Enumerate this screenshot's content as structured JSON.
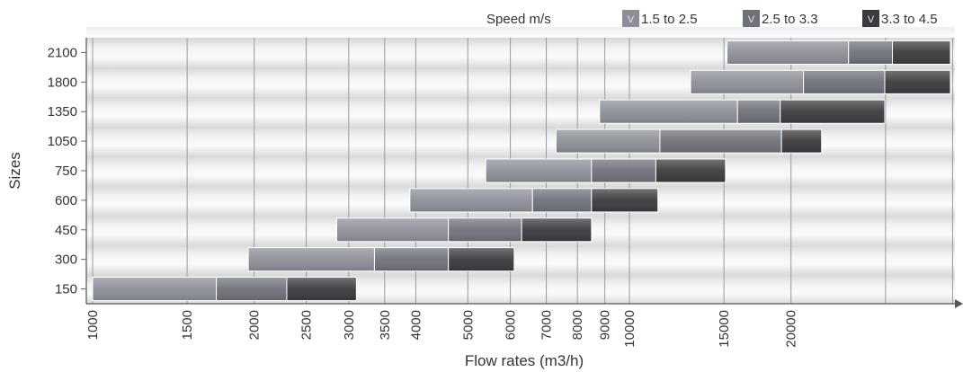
{
  "chart_data": {
    "type": "bar",
    "orientation": "horizontal",
    "xlabel": "Flow rates (m3/h)",
    "ylabel": "Sizes",
    "x_scale": "log",
    "x_ticks": [
      1000,
      1500,
      2000,
      2500,
      3000,
      3500,
      4000,
      5000,
      6000,
      7000,
      8000,
      9000,
      10000,
      15000,
      20000
    ],
    "categories": [
      "150",
      "300",
      "450",
      "600",
      "750",
      "1050",
      "1350",
      "1800",
      "2100"
    ],
    "legend": {
      "title": "Speed m/s",
      "position": "top-right",
      "swatch_glyph": "V",
      "entries": [
        {
          "label": "1.5 to 2.5",
          "color": "#8d8f98"
        },
        {
          "label": "2.5 to 3.3",
          "color": "#6f717a"
        },
        {
          "label": "3.3 to 4.5",
          "color": "#3b3b3f"
        }
      ]
    },
    "series": [
      {
        "name": "1.5 to 2.5",
        "ranges": [
          [
            1000,
            1700
          ],
          [
            1950,
            3350
          ],
          [
            2850,
            4600
          ],
          [
            3900,
            6600
          ],
          [
            5400,
            8500
          ],
          [
            7300,
            11400
          ],
          [
            8800,
            15900
          ],
          [
            13000,
            21100
          ],
          [
            15200,
            25600
          ]
        ]
      },
      {
        "name": "2.5 to 3.3",
        "ranges": [
          [
            1700,
            2300
          ],
          [
            3350,
            4600
          ],
          [
            4600,
            6300
          ],
          [
            6600,
            8500
          ],
          [
            8500,
            11200
          ],
          [
            11400,
            19200
          ],
          [
            15900,
            19100
          ],
          [
            21100,
            29900
          ],
          [
            25600,
            30900
          ]
        ]
      },
      {
        "name": "3.3 to 4.5",
        "ranges": [
          [
            2300,
            3100
          ],
          [
            4600,
            6100
          ],
          [
            6300,
            8500
          ],
          [
            8500,
            11300
          ],
          [
            11200,
            15100
          ],
          [
            19200,
            22800
          ],
          [
            19100,
            29900
          ],
          [
            29900,
            40000
          ],
          [
            30900,
            47000
          ]
        ]
      }
    ],
    "grid": "vertical"
  }
}
